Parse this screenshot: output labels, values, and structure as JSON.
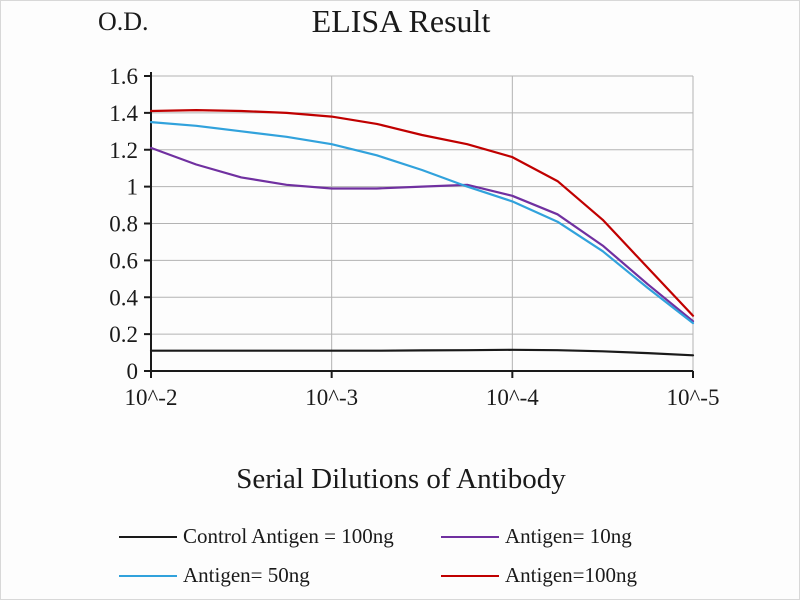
{
  "chart_data": {
    "type": "line",
    "title": "ELISA Result",
    "ylabel": "O.D.",
    "xlabel": "Serial Dilutions of Antibody",
    "ylim": [
      0,
      1.6
    ],
    "y_ticks": [
      "0",
      "0.2",
      "0.4",
      "0.6",
      "0.8",
      "1",
      "1.2",
      "1.4",
      "1.6"
    ],
    "x_tick_labels": [
      "10^-2",
      "10^-3",
      "10^-4",
      "10^-5"
    ],
    "grid": true,
    "legend_position": "bottom",
    "axis_color": "#1a1a1a",
    "grid_color": "#b3b3b3",
    "x": [
      0,
      0.25,
      0.5,
      0.75,
      1,
      1.25,
      1.5,
      1.75,
      2,
      2.25,
      2.5,
      2.75,
      3
    ],
    "series": [
      {
        "name": "Control Antigen = 100ng",
        "color": "#1a1a1a",
        "values": [
          0.11,
          0.11,
          0.11,
          0.11,
          0.11,
          0.11,
          0.112,
          0.113,
          0.115,
          0.113,
          0.107,
          0.097,
          0.085
        ]
      },
      {
        "name": "Antigen= 10ng",
        "color": "#7030a0",
        "values": [
          1.21,
          1.12,
          1.05,
          1.01,
          0.99,
          0.99,
          1.0,
          1.01,
          0.95,
          0.85,
          0.68,
          0.47,
          0.27
        ]
      },
      {
        "name": "Antigen= 50ng",
        "color": "#31a2dc",
        "values": [
          1.35,
          1.33,
          1.3,
          1.27,
          1.23,
          1.17,
          1.09,
          1.0,
          0.92,
          0.81,
          0.65,
          0.45,
          0.26
        ]
      },
      {
        "name": "Antigen=100ng",
        "color": "#c00000",
        "values": [
          1.41,
          1.415,
          1.41,
          1.4,
          1.38,
          1.34,
          1.28,
          1.23,
          1.16,
          1.03,
          0.82,
          0.56,
          0.3
        ]
      }
    ]
  }
}
